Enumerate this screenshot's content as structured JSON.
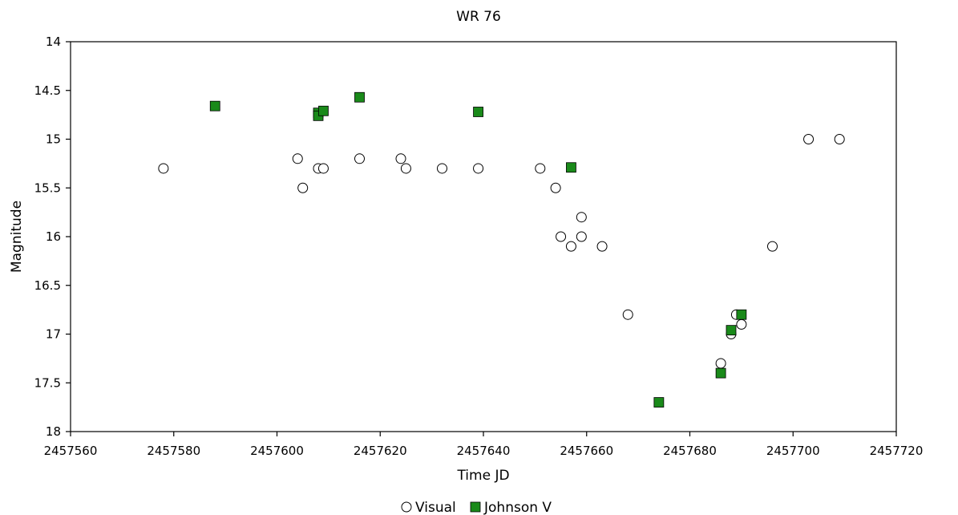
{
  "chart_data": {
    "type": "scatter",
    "title": "WR 76",
    "xlabel": "Time JD",
    "ylabel": "Magnitude",
    "xlim": [
      2457560,
      2457720
    ],
    "ylim": [
      14,
      18
    ],
    "y_inverted": true,
    "grid": false,
    "legend_position": "bottom-center",
    "x_ticks": [
      "2457560",
      "2457580",
      "2457600",
      "2457620",
      "2457640",
      "2457660",
      "2457680",
      "2457700",
      "2457720"
    ],
    "y_ticks": [
      "14",
      "14.5",
      "15",
      "15.5",
      "16",
      "16.5",
      "17",
      "17.5",
      "18"
    ],
    "series": [
      {
        "name": "Visual",
        "marker": "circle-open",
        "color": "#000000",
        "points": [
          [
            2457578,
            15.3
          ],
          [
            2457604,
            15.2
          ],
          [
            2457605,
            15.5
          ],
          [
            2457608,
            15.3
          ],
          [
            2457609,
            15.3
          ],
          [
            2457616,
            15.2
          ],
          [
            2457624,
            15.2
          ],
          [
            2457625,
            15.3
          ],
          [
            2457632,
            15.3
          ],
          [
            2457639,
            15.3
          ],
          [
            2457651,
            15.3
          ],
          [
            2457654,
            15.5
          ],
          [
            2457655,
            16.0
          ],
          [
            2457657,
            16.1
          ],
          [
            2457659,
            15.8
          ],
          [
            2457659,
            16.0
          ],
          [
            2457663,
            16.1
          ],
          [
            2457668,
            16.8
          ],
          [
            2457686,
            17.3
          ],
          [
            2457688,
            17.0
          ],
          [
            2457689,
            16.8
          ],
          [
            2457690,
            16.9
          ],
          [
            2457696,
            16.1
          ],
          [
            2457703,
            15.0
          ],
          [
            2457709,
            15.0
          ]
        ]
      },
      {
        "name": "Johnson V",
        "marker": "square-filled",
        "color": "#1a8a1a",
        "points": [
          [
            2457588,
            14.66
          ],
          [
            2457608,
            14.73
          ],
          [
            2457608,
            14.76
          ],
          [
            2457609,
            14.71
          ],
          [
            2457616,
            14.57
          ],
          [
            2457639,
            14.72
          ],
          [
            2457657,
            15.29
          ],
          [
            2457674,
            17.7
          ],
          [
            2457686,
            17.4
          ],
          [
            2457688,
            16.96
          ],
          [
            2457690,
            16.8
          ]
        ]
      }
    ]
  }
}
